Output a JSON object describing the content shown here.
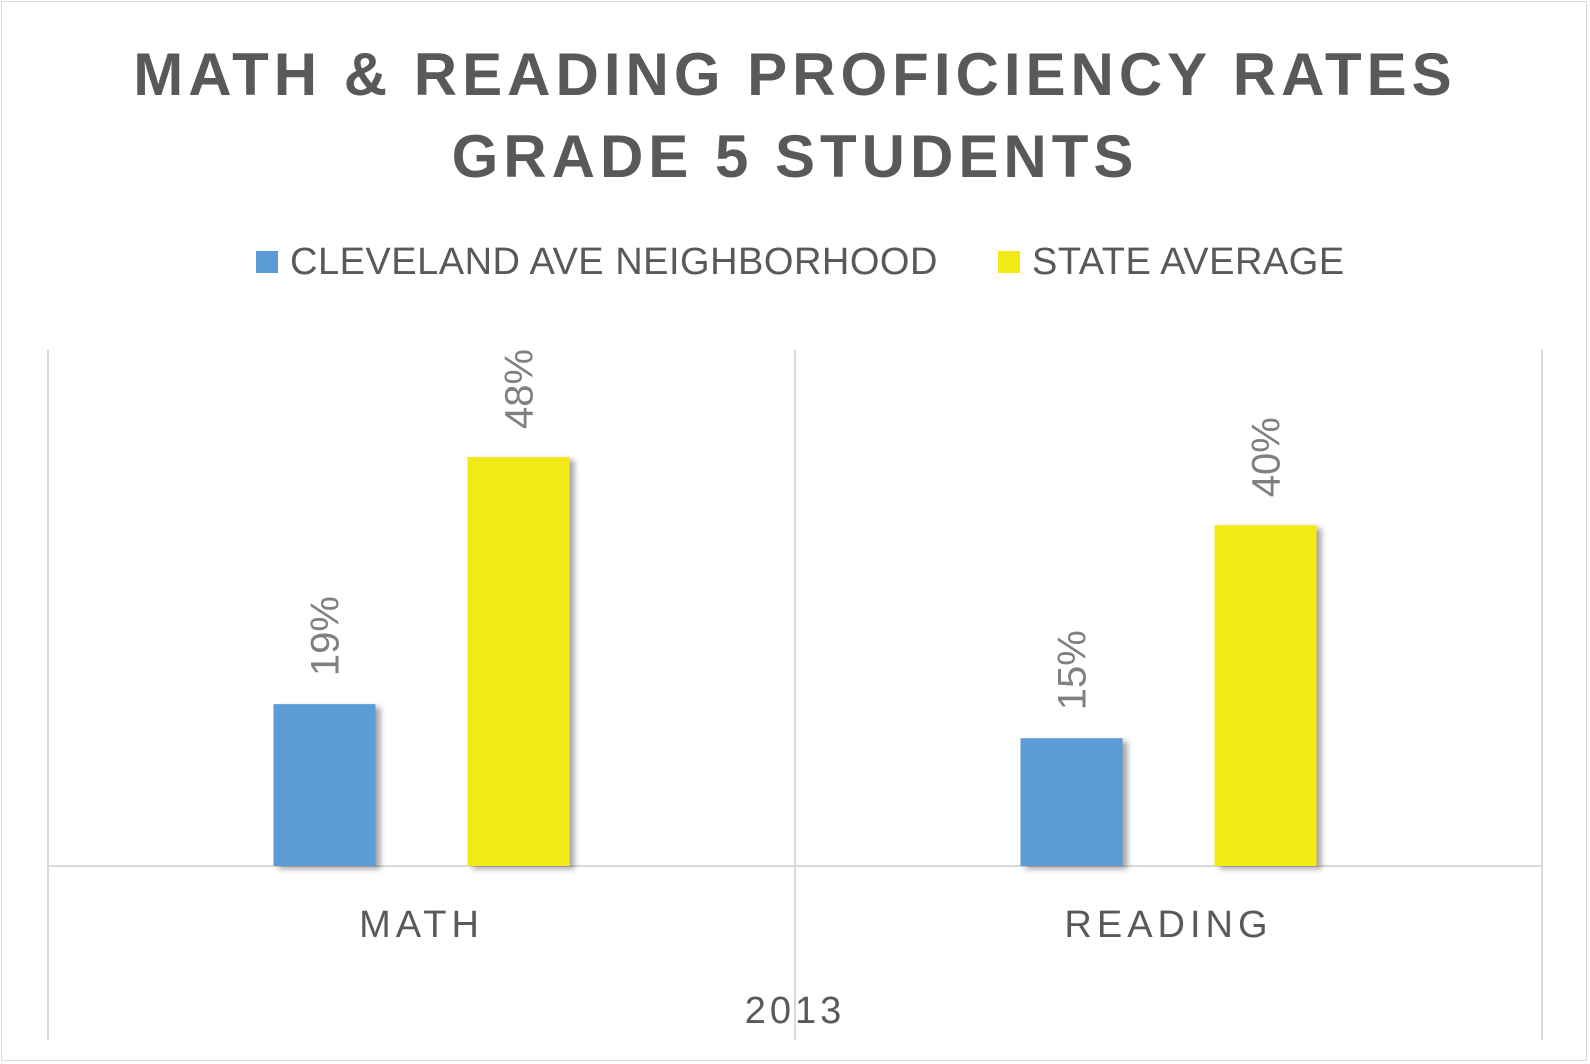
{
  "chart_data": {
    "type": "bar",
    "title_line1": "MATH & READING PROFICIENCY RATES",
    "title_line2": "GRADE 5 STUDENTS",
    "categories": [
      "MATH",
      "READING"
    ],
    "group_label": "2013",
    "series": [
      {
        "name": "CLEVELAND AVE NEIGHBORHOOD",
        "values": [
          19,
          15
        ],
        "labels": [
          "19%",
          "15%"
        ],
        "color": "#5b9bd5"
      },
      {
        "name": "STATE AVERAGE",
        "values": [
          48,
          40
        ],
        "labels": [
          "48%",
          "40%"
        ],
        "color": "#f2e917"
      }
    ],
    "ylim": [
      0,
      58
    ],
    "legend_position": "top",
    "grid": false,
    "data_label_rotation": "vertical"
  }
}
